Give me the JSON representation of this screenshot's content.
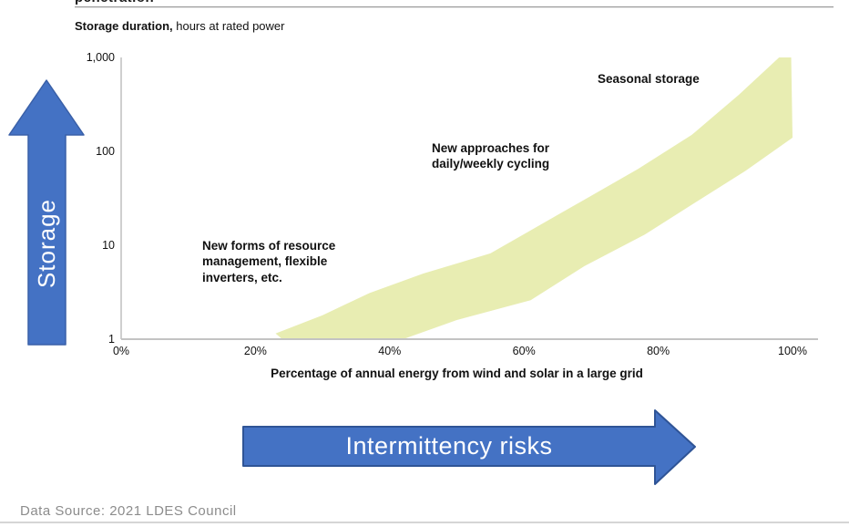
{
  "page": {
    "title_cut": "penetration",
    "subtitle_bold": "Storage duration,",
    "subtitle_rest": " hours at rated power",
    "footer": "Data Source: 2021 LDES Council"
  },
  "colors": {
    "band_fill": "#e8edb2",
    "arrow_fill": "#4472c4",
    "arrow_stroke_up": "#3a60a8",
    "arrow_stroke_right": "#2f5496",
    "axis_line": "#c3c3c3"
  },
  "arrows": {
    "storage_label": "Storage",
    "intermittency_label": "Intermittency risks"
  },
  "chart_data": {
    "type": "area",
    "title": "Storage duration, hours at rated power",
    "xlabel": "Percentage of annual energy from wind and solar in a large grid",
    "ylabel": "Storage duration, hours at rated power",
    "xlim": [
      0,
      100
    ],
    "ylim": [
      1,
      1000
    ],
    "y_scale": "log",
    "grid": false,
    "x_ticks": [
      0,
      20,
      40,
      60,
      80,
      100
    ],
    "x_tick_labels": [
      "0%",
      "20%",
      "40%",
      "60%",
      "80%",
      "100%"
    ],
    "y_ticks": [
      1000,
      100,
      10,
      1
    ],
    "y_tick_labels": [
      "1,000",
      "100",
      "10",
      "1"
    ],
    "band": {
      "description": "Required storage duration band vs share of wind/solar energy",
      "upper": [
        [
          23,
          1.15
        ],
        [
          30,
          1.8
        ],
        [
          37,
          3.1
        ],
        [
          45,
          5
        ],
        [
          55,
          8.2
        ],
        [
          65,
          21
        ],
        [
          77,
          65
        ],
        [
          85,
          150
        ],
        [
          92,
          400
        ],
        [
          98,
          1000
        ],
        [
          99.8,
          1000
        ]
      ],
      "lower": [
        [
          24,
          1.0
        ],
        [
          42,
          1.0
        ],
        [
          50,
          1.6
        ],
        [
          61,
          2.6
        ],
        [
          69,
          6
        ],
        [
          78,
          13
        ],
        [
          86,
          30
        ],
        [
          93,
          62
        ],
        [
          100,
          140
        ]
      ]
    },
    "annotations": [
      {
        "id": "resource",
        "text": "New forms of resource\nmanagement, flexible\ninverters, etc.",
        "x_pct": 15,
        "y_hours": 8
      },
      {
        "id": "cycling",
        "text": "New approaches for\ndaily/weekly cycling",
        "x_pct": 47,
        "y_hours": 120
      },
      {
        "id": "seasonal",
        "text": "Seasonal storage",
        "x_pct": 72,
        "y_hours": 700
      }
    ]
  }
}
